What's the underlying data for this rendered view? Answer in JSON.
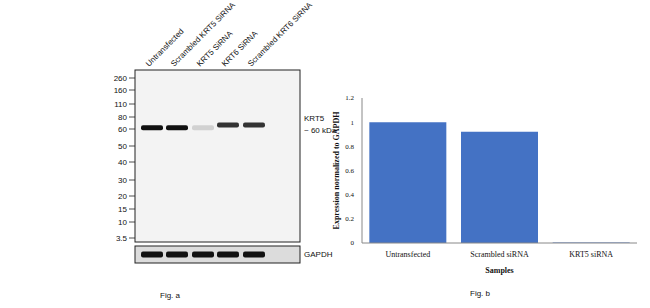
{
  "blot": {
    "lanes": [
      "Untransfected",
      "Scrambled KRT5 SiRNA",
      "KRT5 SiRNA",
      "KRT6 SiRNA",
      "Scrambled KRT6 SiRNA"
    ],
    "markers_kda": [
      260,
      160,
      110,
      80,
      60,
      50,
      40,
      30,
      20,
      15,
      10,
      3.5
    ],
    "target_label": "KRT5",
    "target_size": "~ 60 kDa",
    "band_kda": [
      62,
      62,
      62,
      66,
      66
    ],
    "band_intensity": [
      1,
      1,
      0.15,
      0.85,
      0.85
    ],
    "loading_control": "GAPDH",
    "loading_intensity": [
      1,
      1,
      1,
      1,
      1
    ],
    "caption": "Fig. a"
  },
  "chart_data": {
    "type": "bar",
    "caption": "Fig. b",
    "x_label": "Samples",
    "y_label": "Expression normalized to GAPDH",
    "categories": [
      "Untransfected",
      "Scrambled siRNA",
      "KRT5 siRNA"
    ],
    "values": [
      1,
      0.92,
      0.005
    ],
    "color": "#4472c4",
    "ylim": [
      0,
      1.2
    ],
    "yticks": [
      0,
      0.2,
      0.4,
      0.6,
      0.8,
      1,
      1.2
    ],
    "grid": false
  }
}
